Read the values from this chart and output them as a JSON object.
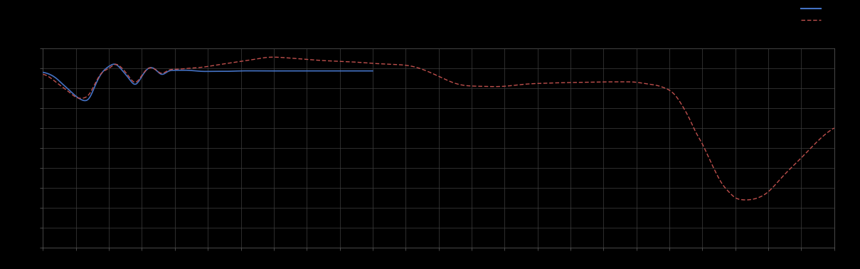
{
  "background_color": "#000000",
  "plot_bg_color": "#000000",
  "grid_color": "#404040",
  "line1_color": "#4472c4",
  "line2_color": "#c0504d",
  "figsize": [
    12.09,
    3.78
  ],
  "dpi": 100,
  "xlim": [
    0,
    120
  ],
  "ylim": [
    -8.0,
    2.0
  ],
  "blue_x": [
    0,
    1,
    2,
    3,
    4,
    5,
    6,
    7,
    8,
    9,
    10,
    11,
    12,
    13,
    14,
    15,
    16,
    17,
    18,
    19,
    20,
    22,
    24,
    26,
    28,
    30,
    33,
    36,
    40,
    45,
    50
  ],
  "blue_y": [
    0.8,
    0.7,
    0.5,
    0.2,
    -0.1,
    -0.4,
    -0.6,
    -0.5,
    0.2,
    0.8,
    1.1,
    1.2,
    0.9,
    0.5,
    0.2,
    0.6,
    1.0,
    0.95,
    0.7,
    0.85,
    0.9,
    0.9,
    0.85,
    0.85,
    0.85,
    0.87,
    0.87,
    0.87,
    0.87,
    0.87,
    0.87
  ],
  "red_x": [
    0,
    1,
    2,
    3,
    4,
    5,
    6,
    7,
    8,
    9,
    10,
    11,
    12,
    13,
    14,
    15,
    16,
    17,
    18,
    19,
    20,
    22,
    24,
    26,
    28,
    30,
    32,
    34,
    36,
    38,
    40,
    42,
    45,
    48,
    50,
    53,
    56,
    60,
    63,
    66,
    70,
    73,
    76,
    79,
    82,
    85,
    87,
    89,
    90,
    91,
    92,
    93,
    94,
    95,
    96,
    97,
    98,
    99,
    100,
    101,
    102,
    103,
    104,
    105,
    106,
    108,
    110,
    112,
    115,
    118,
    120
  ],
  "red_y": [
    0.7,
    0.55,
    0.3,
    0.05,
    -0.2,
    -0.45,
    -0.5,
    -0.3,
    0.3,
    0.8,
    1.0,
    1.2,
    1.0,
    0.6,
    0.3,
    0.65,
    1.0,
    0.95,
    0.75,
    0.9,
    0.95,
    1.0,
    1.05,
    1.15,
    1.25,
    1.35,
    1.45,
    1.55,
    1.55,
    1.5,
    1.45,
    1.4,
    1.35,
    1.3,
    1.25,
    1.2,
    1.1,
    0.6,
    0.2,
    0.1,
    0.1,
    0.2,
    0.25,
    0.28,
    0.3,
    0.32,
    0.32,
    0.32,
    0.3,
    0.25,
    0.2,
    0.15,
    0.05,
    -0.1,
    -0.4,
    -0.9,
    -1.5,
    -2.2,
    -2.8,
    -3.5,
    -4.2,
    -4.8,
    -5.2,
    -5.5,
    -5.6,
    -5.55,
    -5.2,
    -4.5,
    -3.5,
    -2.5,
    -2.0
  ]
}
